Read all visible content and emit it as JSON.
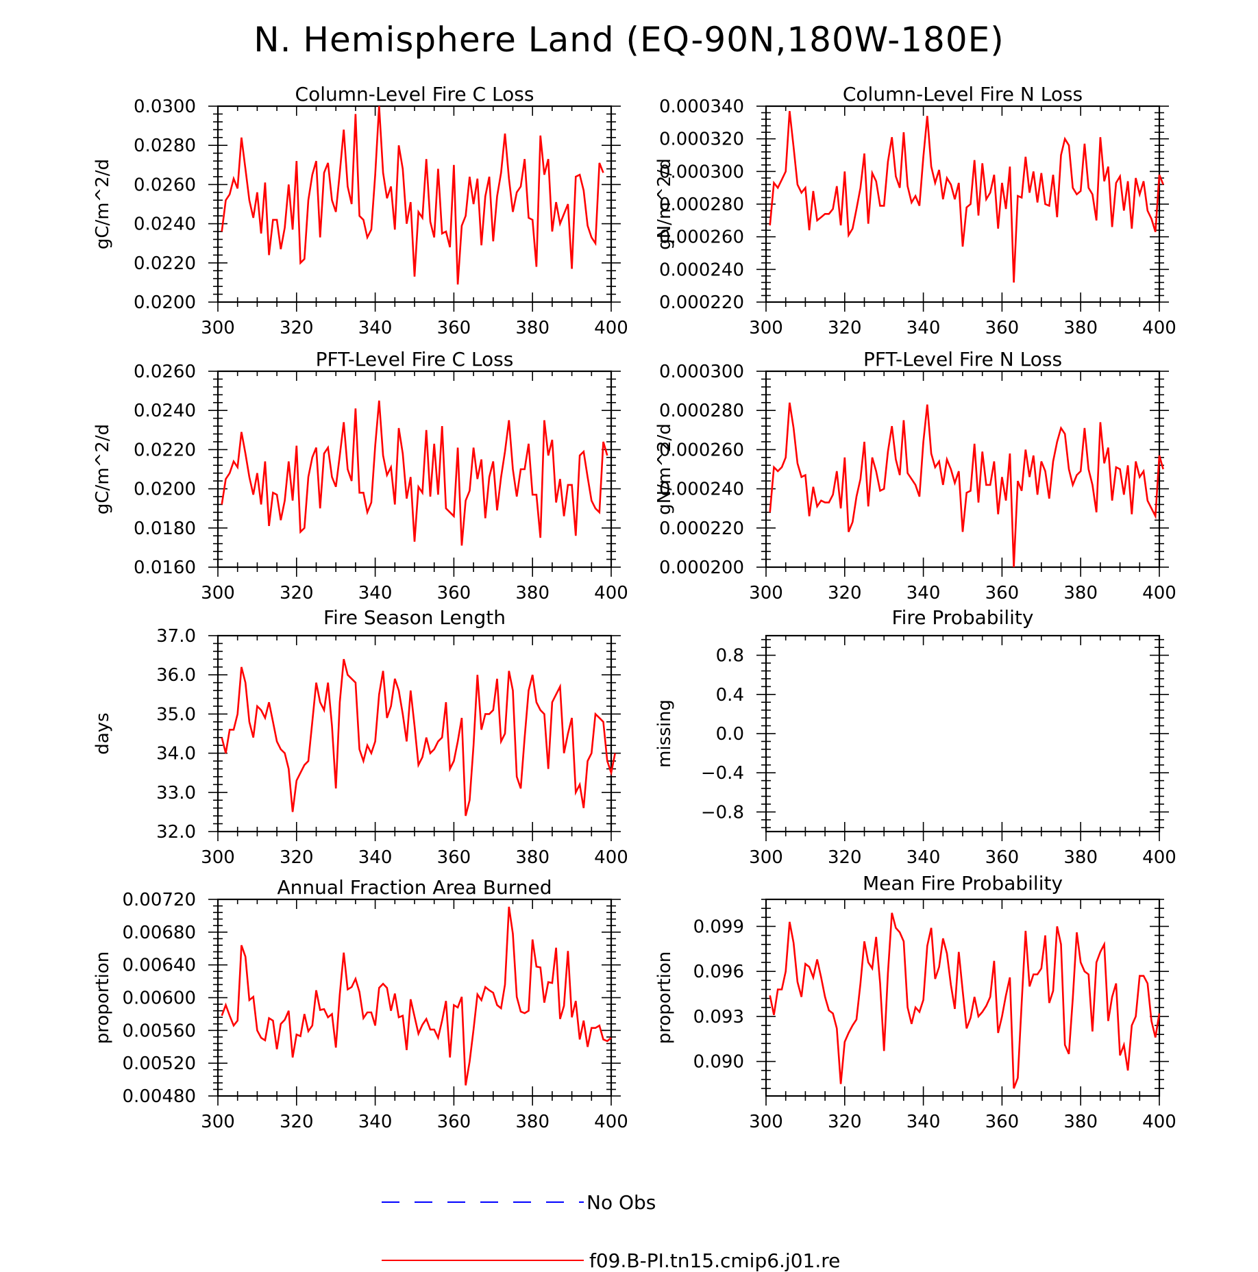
{
  "figure": {
    "title": "N. Hemisphere Land (EQ-90N,180W-180E)"
  },
  "legend": {
    "entries": [
      {
        "label": "No Obs",
        "color": "#0000ff",
        "style": "dashed"
      },
      {
        "label": "f09.B-PI.tn15.cmip6.j01.re",
        "color": "#ff0000",
        "style": "solid"
      }
    ]
  },
  "chart_data": [
    {
      "type": "line",
      "title": "Column-Level Fire C Loss",
      "xlabel": "",
      "ylabel": "gC/m^2/d",
      "xlim": [
        300,
        400
      ],
      "ylim": [
        0.02,
        0.03
      ],
      "xticks": [
        "300",
        "320",
        "340",
        "360",
        "380",
        "400"
      ],
      "yticks": [
        "0.0200",
        "0.0220",
        "0.0240",
        "0.0260",
        "0.0280",
        "0.0300"
      ],
      "x_start": 301,
      "series": [
        {
          "name": "f09.B-PI.tn15.cmip6.j01.re",
          "color": "#ff0000",
          "values": [
            0.0236,
            0.0252,
            0.0255,
            0.0263,
            0.0258,
            0.0284,
            0.0268,
            0.0252,
            0.0243,
            0.0256,
            0.0235,
            0.0261,
            0.0224,
            0.0242,
            0.0242,
            0.0227,
            0.0238,
            0.026,
            0.0237,
            0.0272,
            0.022,
            0.0222,
            0.0252,
            0.0265,
            0.0272,
            0.0233,
            0.0266,
            0.0271,
            0.0252,
            0.0246,
            0.0266,
            0.0288,
            0.0259,
            0.025,
            0.0296,
            0.0244,
            0.0242,
            0.0233,
            0.0237,
            0.0265,
            0.03,
            0.0266,
            0.0253,
            0.0259,
            0.0237,
            0.028,
            0.0268,
            0.024,
            0.0251,
            0.0213,
            0.0246,
            0.0243,
            0.0273,
            0.0241,
            0.0233,
            0.0268,
            0.0235,
            0.0236,
            0.0228,
            0.027,
            0.0209,
            0.0239,
            0.0244,
            0.0264,
            0.025,
            0.0263,
            0.0229,
            0.0254,
            0.0264,
            0.0231,
            0.0254,
            0.0266,
            0.0286,
            0.0263,
            0.0246,
            0.0256,
            0.0259,
            0.0273,
            0.0243,
            0.0242,
            0.0218,
            0.0285,
            0.0265,
            0.0273,
            0.0236,
            0.0251,
            0.024,
            0.0245,
            0.025,
            0.0217,
            0.0264,
            0.0265,
            0.0257,
            0.0239,
            0.0233,
            0.023,
            0.0271,
            0.0266
          ]
        }
      ]
    },
    {
      "type": "line",
      "title": "Column-Level Fire N Loss",
      "xlabel": "",
      "ylabel": "gN/m^2/d",
      "xlim": [
        300,
        400
      ],
      "ylim": [
        0.00022,
        0.00034
      ],
      "xticks": [
        "300",
        "320",
        "340",
        "360",
        "380",
        "400"
      ],
      "yticks": [
        "0.000220",
        "0.000240",
        "0.000260",
        "0.000280",
        "0.000300",
        "0.000320",
        "0.000340"
      ],
      "x_start": 301,
      "series": [
        {
          "name": "f09.B-PI.tn15.cmip6.j01.re",
          "color": "#ff0000",
          "values": [
            0.000267,
            0.000293,
            0.00029,
            0.000295,
            0.0003,
            0.000337,
            0.000315,
            0.000292,
            0.000287,
            0.00029,
            0.000264,
            0.000288,
            0.00027,
            0.000272,
            0.000274,
            0.000274,
            0.000277,
            0.000291,
            0.000267,
            0.0003,
            0.000261,
            0.000265,
            0.000277,
            0.00029,
            0.000311,
            0.000268,
            0.000299,
            0.000294,
            0.000279,
            0.000279,
            0.000306,
            0.000321,
            0.000297,
            0.00029,
            0.000324,
            0.000291,
            0.000281,
            0.000285,
            0.000279,
            0.000309,
            0.000334,
            0.000303,
            0.000293,
            0.000301,
            0.000283,
            0.000296,
            0.000292,
            0.000283,
            0.000293,
            0.000254,
            0.000278,
            0.00028,
            0.000307,
            0.000273,
            0.000305,
            0.000283,
            0.000287,
            0.000298,
            0.000265,
            0.000293,
            0.000277,
            0.000303,
            0.000232,
            0.000285,
            0.000284,
            0.000309,
            0.000287,
            0.0003,
            0.000281,
            0.000299,
            0.00028,
            0.000279,
            0.000298,
            0.000272,
            0.00031,
            0.00032,
            0.000316,
            0.00029,
            0.000286,
            0.000288,
            0.000317,
            0.00029,
            0.000286,
            0.00027,
            0.000321,
            0.000294,
            0.000303,
            0.000266,
            0.000293,
            0.000297,
            0.000276,
            0.000294,
            0.000265,
            0.000296,
            0.000286,
            0.000294,
            0.000276,
            0.000271,
            0.000263,
            0.000298,
            0.000292
          ]
        }
      ]
    },
    {
      "type": "line",
      "title": "PFT-Level Fire C Loss",
      "xlabel": "",
      "ylabel": "gC/m^2/d",
      "xlim": [
        300,
        400
      ],
      "ylim": [
        0.016,
        0.026
      ],
      "xticks": [
        "300",
        "320",
        "340",
        "360",
        "380",
        "400"
      ],
      "yticks": [
        "0.0160",
        "0.0180",
        "0.0200",
        "0.0220",
        "0.0240",
        "0.0260"
      ],
      "x_start": 301,
      "series": [
        {
          "name": "f09.B-PI.tn15.cmip6.j01.re",
          "color": "#ff0000",
          "values": [
            0.0192,
            0.0205,
            0.0208,
            0.0214,
            0.0211,
            0.0229,
            0.0218,
            0.0206,
            0.0197,
            0.0208,
            0.0192,
            0.0214,
            0.0181,
            0.0198,
            0.0197,
            0.0184,
            0.0194,
            0.0214,
            0.0194,
            0.0222,
            0.0178,
            0.018,
            0.0206,
            0.0216,
            0.0221,
            0.019,
            0.0218,
            0.0221,
            0.0206,
            0.0201,
            0.0217,
            0.0234,
            0.021,
            0.0204,
            0.0241,
            0.0198,
            0.0198,
            0.0188,
            0.0193,
            0.0222,
            0.0245,
            0.0217,
            0.0207,
            0.0211,
            0.0192,
            0.0231,
            0.0218,
            0.0195,
            0.0206,
            0.0173,
            0.0201,
            0.0198,
            0.023,
            0.0196,
            0.0223,
            0.0197,
            0.0232,
            0.019,
            0.0188,
            0.0186,
            0.0221,
            0.0171,
            0.0194,
            0.0199,
            0.0221,
            0.0205,
            0.0215,
            0.0185,
            0.0206,
            0.0214,
            0.0189,
            0.0206,
            0.0219,
            0.0235,
            0.021,
            0.0196,
            0.021,
            0.021,
            0.0223,
            0.0197,
            0.0197,
            0.0175,
            0.0235,
            0.0217,
            0.0225,
            0.0193,
            0.0205,
            0.0186,
            0.0202,
            0.0202,
            0.0176,
            0.0217,
            0.0219,
            0.0206,
            0.0194,
            0.019,
            0.0188,
            0.0224,
            0.0217
          ]
        }
      ]
    },
    {
      "type": "line",
      "title": "PFT-Level Fire N Loss",
      "xlabel": "",
      "ylabel": "gN/m^2/d",
      "xlim": [
        300,
        400
      ],
      "ylim": [
        0.0002,
        0.0003
      ],
      "xticks": [
        "300",
        "320",
        "340",
        "360",
        "380",
        "400"
      ],
      "yticks": [
        "0.000200",
        "0.000220",
        "0.000240",
        "0.000260",
        "0.000280",
        "0.000300"
      ],
      "x_start": 301,
      "series": [
        {
          "name": "f09.B-PI.tn15.cmip6.j01.re",
          "color": "#ff0000",
          "values": [
            0.000228,
            0.000251,
            0.000249,
            0.000251,
            0.000256,
            0.000284,
            0.000271,
            0.000253,
            0.000246,
            0.000247,
            0.000226,
            0.000241,
            0.000231,
            0.000234,
            0.000233,
            0.000233,
            0.000237,
            0.000249,
            0.00023,
            0.000256,
            0.000218,
            0.000223,
            0.000236,
            0.000245,
            0.000264,
            0.000231,
            0.000256,
            0.000249,
            0.000239,
            0.00024,
            0.000259,
            0.000272,
            0.000255,
            0.000247,
            0.000275,
            0.000248,
            0.000245,
            0.000242,
            0.000236,
            0.000264,
            0.000283,
            0.000258,
            0.000251,
            0.000254,
            0.000242,
            0.000255,
            0.00025,
            0.000243,
            0.000249,
            0.000218,
            0.000238,
            0.000239,
            0.000263,
            0.000233,
            0.000259,
            0.000242,
            0.000242,
            0.000254,
            0.000227,
            0.000246,
            0.000234,
            0.000258,
            0.0002,
            0.000244,
            0.000239,
            0.00026,
            0.000246,
            0.000257,
            0.000237,
            0.000254,
            0.000249,
            0.000235,
            0.000254,
            0.000264,
            0.000271,
            0.000268,
            0.00025,
            0.000242,
            0.000247,
            0.000249,
            0.000271,
            0.00025,
            0.000242,
            0.000228,
            0.000274,
            0.000253,
            0.000261,
            0.000234,
            0.000251,
            0.00025,
            0.000237,
            0.000252,
            0.000227,
            0.000254,
            0.000246,
            0.000249,
            0.000234,
            0.00023,
            0.000226,
            0.000257,
            0.00025
          ]
        }
      ]
    },
    {
      "type": "line",
      "title": "Fire Season Length",
      "xlabel": "",
      "ylabel": "days",
      "xlim": [
        300,
        400
      ],
      "ylim": [
        32.0,
        37.0
      ],
      "xticks": [
        "300",
        "320",
        "340",
        "360",
        "380",
        "400"
      ],
      "yticks": [
        "32.0",
        "33.0",
        "34.0",
        "35.0",
        "36.0",
        "37.0"
      ],
      "x_start": 301,
      "series": [
        {
          "name": "f09.B-PI.tn15.cmip6.j01.re",
          "color": "#ff0000",
          "values": [
            34.4,
            34.0,
            34.6,
            34.6,
            35.0,
            36.2,
            35.8,
            34.8,
            34.4,
            35.2,
            35.1,
            34.9,
            35.3,
            34.8,
            34.3,
            34.1,
            34.0,
            33.6,
            32.5,
            33.3,
            33.5,
            33.7,
            33.8,
            34.8,
            35.8,
            35.3,
            35.1,
            35.8,
            34.7,
            33.1,
            35.3,
            36.4,
            36.0,
            35.9,
            35.8,
            34.1,
            33.8,
            34.2,
            34.0,
            34.3,
            35.5,
            36.1,
            34.9,
            35.2,
            35.9,
            35.6,
            35.0,
            34.3,
            35.6,
            34.7,
            33.7,
            33.9,
            34.4,
            34.0,
            34.1,
            34.3,
            34.4,
            35.3,
            33.6,
            33.8,
            34.3,
            34.9,
            32.4,
            32.8,
            34.2,
            36.0,
            34.6,
            35.0,
            35.0,
            35.1,
            35.9,
            34.3,
            34.5,
            36.1,
            35.6,
            33.4,
            33.1,
            34.4,
            35.6,
            36.0,
            35.3,
            35.1,
            35.0,
            33.6,
            35.3,
            35.5,
            35.7,
            34.0,
            34.5,
            34.9,
            33.0,
            33.2,
            32.6,
            33.8,
            34.0,
            35.0,
            34.9,
            34.8,
            33.8,
            33.5,
            34.0
          ]
        }
      ]
    },
    {
      "type": "line",
      "title": "Fire Probability",
      "xlabel": "",
      "ylabel": "missing",
      "xlim": [
        300,
        400
      ],
      "ylim": [
        -1.0,
        1.0
      ],
      "xticks": [
        "300",
        "320",
        "340",
        "360",
        "380",
        "400"
      ],
      "yticks": [
        "-0.8",
        "-0.4",
        "0.0",
        "0.4",
        "0.8"
      ],
      "ytick_values": [
        -0.8,
        -0.4,
        0.0,
        0.4,
        0.8
      ],
      "x_start": 301,
      "series": []
    },
    {
      "type": "line",
      "title": "Annual Fraction Area Burned",
      "xlabel": "",
      "ylabel": "proportion",
      "xlim": [
        300,
        400
      ],
      "ylim": [
        0.0048,
        0.0072
      ],
      "xticks": [
        "300",
        "320",
        "340",
        "360",
        "380",
        "400"
      ],
      "yticks": [
        "0.00480",
        "0.00520",
        "0.00560",
        "0.00600",
        "0.00640",
        "0.00680",
        "0.00720"
      ],
      "x_start": 301,
      "series": [
        {
          "name": "f09.B-PI.tn15.cmip6.j01.re",
          "color": "#ff0000",
          "values": [
            0.00578,
            0.00591,
            0.00578,
            0.00566,
            0.00572,
            0.00664,
            0.0065,
            0.00597,
            0.00601,
            0.0056,
            0.00551,
            0.00548,
            0.00575,
            0.00572,
            0.00537,
            0.00568,
            0.00573,
            0.00584,
            0.00527,
            0.00555,
            0.00553,
            0.0058,
            0.00559,
            0.00566,
            0.00609,
            0.00585,
            0.00586,
            0.00576,
            0.0058,
            0.00539,
            0.00604,
            0.00655,
            0.0061,
            0.00613,
            0.00623,
            0.00607,
            0.00575,
            0.00582,
            0.00582,
            0.00566,
            0.00612,
            0.00617,
            0.00612,
            0.00584,
            0.00605,
            0.00576,
            0.00578,
            0.00536,
            0.00598,
            0.00577,
            0.00556,
            0.00567,
            0.00574,
            0.00561,
            0.00561,
            0.00551,
            0.00572,
            0.00596,
            0.00527,
            0.00591,
            0.00588,
            0.00601,
            0.00493,
            0.00522,
            0.00561,
            0.00604,
            0.00597,
            0.00613,
            0.00609,
            0.00606,
            0.00591,
            0.00587,
            0.00616,
            0.00711,
            0.00678,
            0.00601,
            0.00583,
            0.00581,
            0.00584,
            0.00671,
            0.00638,
            0.00637,
            0.00594,
            0.00619,
            0.00618,
            0.00661,
            0.00574,
            0.0059,
            0.00657,
            0.00576,
            0.00596,
            0.00549,
            0.00572,
            0.0054,
            0.00563,
            0.00563,
            0.00566,
            0.00549,
            0.00547,
            0.00551
          ]
        }
      ]
    },
    {
      "type": "line",
      "title": "Mean Fire Probability",
      "xlabel": "",
      "ylabel": "proportion",
      "xlim": [
        300,
        400
      ],
      "ylim": [
        0.0877,
        0.1008
      ],
      "xticks": [
        "300",
        "320",
        "340",
        "360",
        "380",
        "400"
      ],
      "yticks": [
        "0.090",
        "0.093",
        "0.096",
        "0.099"
      ],
      "ytick_values": [
        0.09,
        0.093,
        0.096,
        0.099
      ],
      "x_start": 301,
      "series": [
        {
          "name": "f09.B-PI.tn15.cmip6.j01.re",
          "color": "#ff0000",
          "values": [
            0.0944,
            0.0931,
            0.0948,
            0.0948,
            0.096,
            0.0993,
            0.0979,
            0.0953,
            0.0943,
            0.0965,
            0.0963,
            0.0956,
            0.0968,
            0.0956,
            0.0943,
            0.0934,
            0.0932,
            0.0922,
            0.0885,
            0.0913,
            0.0919,
            0.0924,
            0.0928,
            0.0952,
            0.098,
            0.0966,
            0.0962,
            0.0983,
            0.0952,
            0.0907,
            0.0959,
            0.0999,
            0.0989,
            0.0986,
            0.098,
            0.0936,
            0.0925,
            0.0936,
            0.0933,
            0.0941,
            0.0977,
            0.0989,
            0.0955,
            0.0963,
            0.0982,
            0.0972,
            0.0951,
            0.0935,
            0.0973,
            0.0947,
            0.0922,
            0.0929,
            0.0943,
            0.093,
            0.0933,
            0.0937,
            0.0943,
            0.0967,
            0.0919,
            0.093,
            0.0944,
            0.0956,
            0.0882,
            0.0889,
            0.0939,
            0.0987,
            0.095,
            0.0958,
            0.0958,
            0.0962,
            0.0984,
            0.0939,
            0.0947,
            0.099,
            0.0978,
            0.0911,
            0.0905,
            0.0942,
            0.0986,
            0.0966,
            0.096,
            0.0958,
            0.092,
            0.0966,
            0.0973,
            0.0978,
            0.0927,
            0.0943,
            0.0952,
            0.0904,
            0.0911,
            0.0894,
            0.0924,
            0.093,
            0.0957,
            0.0957,
            0.0952,
            0.0927,
            0.0916,
            0.0932
          ]
        }
      ]
    }
  ]
}
